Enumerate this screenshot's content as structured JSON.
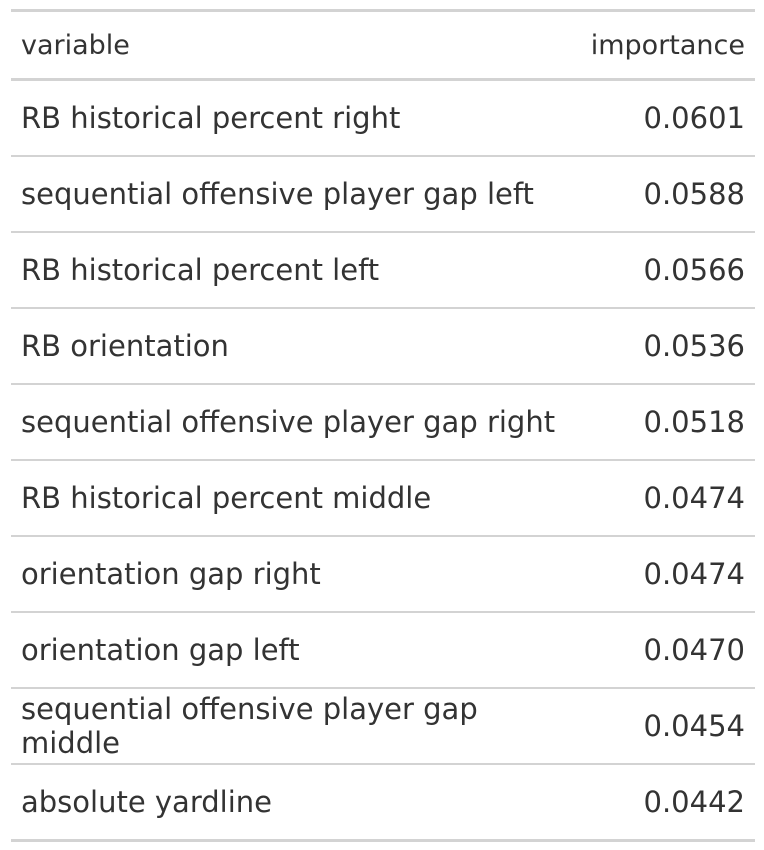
{
  "table": {
    "columns": [
      "variable",
      "importance"
    ],
    "rows": [
      {
        "variable": "RB historical percent right",
        "importance": "0.0601"
      },
      {
        "variable": "sequential offensive player gap left",
        "importance": "0.0588"
      },
      {
        "variable": "RB historical percent left",
        "importance": "0.0566"
      },
      {
        "variable": "RB orientation",
        "importance": "0.0536"
      },
      {
        "variable": "sequential offensive player gap right",
        "importance": "0.0518"
      },
      {
        "variable": "RB historical percent middle",
        "importance": "0.0474"
      },
      {
        "variable": "orientation gap right",
        "importance": "0.0474"
      },
      {
        "variable": "orientation gap left",
        "importance": "0.0470"
      },
      {
        "variable": "sequential offensive player gap middle",
        "importance": "0.0454"
      },
      {
        "variable": "absolute yardline",
        "importance": "0.0442"
      }
    ]
  },
  "colors": {
    "text": "#333333",
    "rule": "#d3d3d3",
    "background": "#ffffff"
  }
}
